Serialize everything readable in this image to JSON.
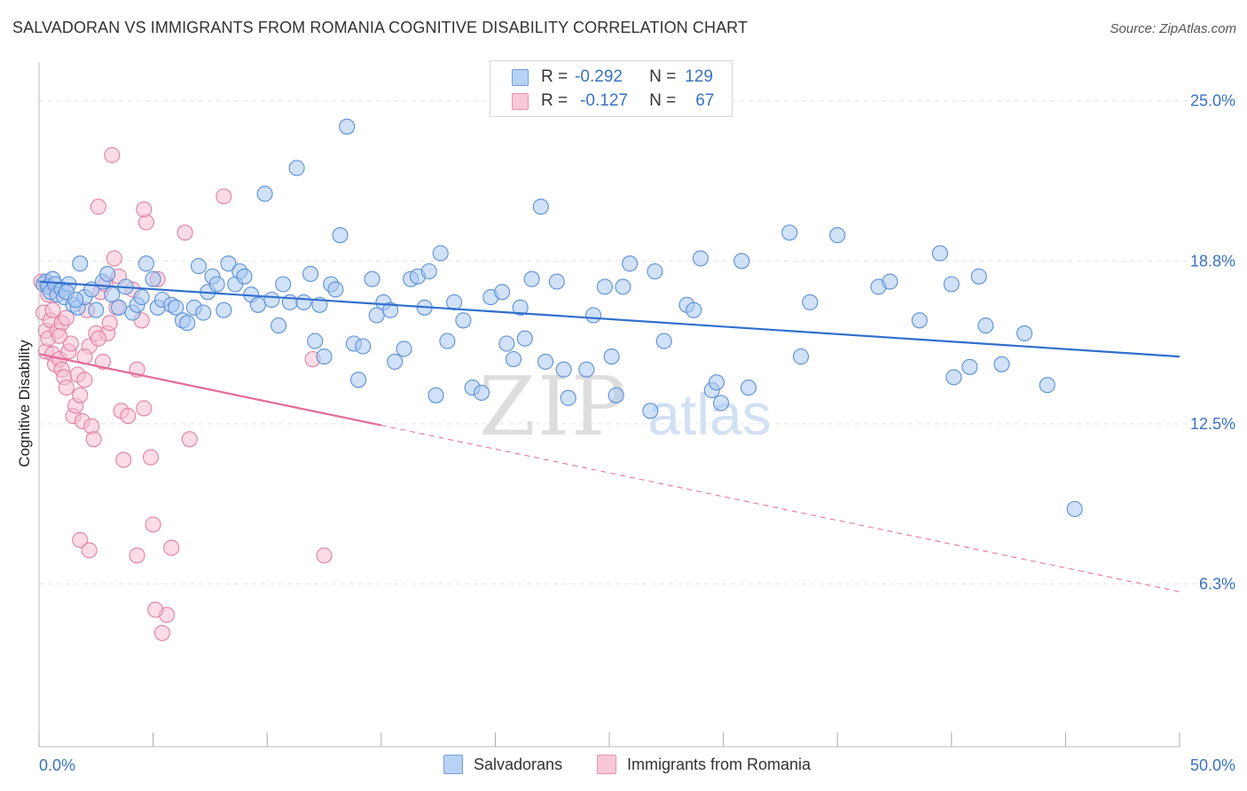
{
  "title": "SALVADORAN VS IMMIGRANTS FROM ROMANIA COGNITIVE DISABILITY CORRELATION CHART",
  "source": "Source: ZipAtlas.com",
  "legend": {
    "rows": [
      {
        "r_label": "R =",
        "r_value": "-0.292",
        "n_label": "N =",
        "n_value": "129"
      },
      {
        "r_label": "R =",
        "r_value": "-0.127",
        "n_label": "N =",
        "n_value": "67"
      }
    ]
  },
  "bottom_legend": [
    "Salvadorans",
    "Immigrants from Romania"
  ],
  "colors": {
    "blue_fill": "#a9c8f2",
    "blue_stroke": "#5b8fd6",
    "blue_line": "#2f6fcc",
    "pink_fill": "#f7bfd2",
    "pink_stroke": "#e27fa3",
    "pink_line": "#e36a97",
    "tick_label": "#3b72c4",
    "grid": "#e3e3e3"
  },
  "chart_data": {
    "type": "scatter",
    "title": "SALVADORAN VS IMMIGRANTS FROM ROMANIA COGNITIVE DISABILITY CORRELATION CHART",
    "xlabel": "",
    "ylabel": "Cognitive Disability",
    "xlim": [
      0,
      50
    ],
    "ylim": [
      0,
      26.5
    ],
    "x_tick_labels": [
      "0.0%",
      "50.0%"
    ],
    "y_ticks": [
      6.3,
      12.5,
      18.8,
      25.0
    ],
    "y_tick_labels": [
      "6.3%",
      "12.5%",
      "18.8%",
      "25.0%"
    ],
    "grid": "horizontal dashed",
    "watermark": {
      "zip": "ZIP",
      "atlas": "atlas"
    },
    "series": [
      {
        "name": "Salvadorans",
        "color": "#a9c8f2",
        "trend": {
          "x": [
            0,
            50
          ],
          "y": [
            18.0,
            15.1
          ],
          "dashed_from": null
        },
        "points": [
          [
            0.2,
            17.9
          ],
          [
            0.3,
            18.0
          ],
          [
            0.4,
            17.8
          ],
          [
            0.5,
            17.6
          ],
          [
            0.6,
            18.1
          ],
          [
            0.7,
            17.9
          ],
          [
            0.8,
            17.5
          ],
          [
            1.0,
            17.7
          ],
          [
            1.1,
            17.4
          ],
          [
            1.3,
            17.9
          ],
          [
            1.5,
            17.1
          ],
          [
            1.7,
            17.0
          ],
          [
            1.8,
            18.7
          ],
          [
            2.0,
            17.4
          ],
          [
            2.3,
            17.7
          ],
          [
            2.5,
            16.9
          ],
          [
            2.8,
            18.0
          ],
          [
            3.0,
            18.3
          ],
          [
            3.2,
            17.5
          ],
          [
            3.5,
            17.0
          ],
          [
            3.8,
            17.8
          ],
          [
            4.1,
            16.8
          ],
          [
            4.3,
            17.1
          ],
          [
            4.5,
            17.4
          ],
          [
            4.7,
            18.7
          ],
          [
            5.0,
            18.1
          ],
          [
            5.2,
            17.0
          ],
          [
            5.4,
            17.3
          ],
          [
            5.8,
            17.1
          ],
          [
            6.0,
            17.0
          ],
          [
            6.3,
            16.5
          ],
          [
            6.5,
            16.4
          ],
          [
            6.8,
            17.0
          ],
          [
            7.0,
            18.6
          ],
          [
            7.2,
            16.8
          ],
          [
            7.4,
            17.6
          ],
          [
            7.6,
            18.2
          ],
          [
            7.8,
            17.9
          ],
          [
            8.1,
            16.9
          ],
          [
            8.3,
            18.7
          ],
          [
            8.6,
            17.9
          ],
          [
            8.8,
            18.4
          ],
          [
            9.0,
            18.2
          ],
          [
            9.3,
            17.5
          ],
          [
            9.6,
            17.1
          ],
          [
            9.9,
            21.4
          ],
          [
            10.2,
            17.3
          ],
          [
            10.5,
            16.3
          ],
          [
            10.7,
            17.9
          ],
          [
            11.0,
            17.2
          ],
          [
            11.3,
            22.4
          ],
          [
            11.6,
            17.2
          ],
          [
            11.9,
            18.3
          ],
          [
            12.1,
            15.7
          ],
          [
            12.3,
            17.1
          ],
          [
            12.5,
            15.1
          ],
          [
            12.8,
            17.9
          ],
          [
            13.0,
            17.7
          ],
          [
            13.2,
            19.8
          ],
          [
            13.5,
            24.0
          ],
          [
            13.8,
            15.6
          ],
          [
            14.0,
            14.2
          ],
          [
            14.2,
            15.5
          ],
          [
            14.6,
            18.1
          ],
          [
            14.8,
            16.7
          ],
          [
            15.1,
            17.2
          ],
          [
            15.4,
            16.9
          ],
          [
            15.6,
            14.9
          ],
          [
            16.0,
            15.4
          ],
          [
            16.3,
            18.1
          ],
          [
            16.6,
            18.2
          ],
          [
            16.9,
            17.0
          ],
          [
            17.1,
            18.4
          ],
          [
            17.4,
            13.6
          ],
          [
            17.6,
            19.1
          ],
          [
            17.9,
            15.7
          ],
          [
            18.2,
            17.2
          ],
          [
            18.6,
            16.5
          ],
          [
            19.0,
            13.9
          ],
          [
            19.4,
            13.7
          ],
          [
            19.8,
            17.4
          ],
          [
            20.3,
            17.6
          ],
          [
            20.5,
            15.6
          ],
          [
            20.8,
            15.0
          ],
          [
            21.1,
            17.0
          ],
          [
            21.3,
            15.8
          ],
          [
            21.6,
            18.1
          ],
          [
            22.0,
            20.9
          ],
          [
            22.2,
            14.9
          ],
          [
            22.7,
            18.0
          ],
          [
            23.0,
            14.6
          ],
          [
            23.2,
            13.5
          ],
          [
            24.0,
            14.6
          ],
          [
            24.3,
            16.7
          ],
          [
            24.8,
            17.8
          ],
          [
            25.1,
            15.1
          ],
          [
            25.3,
            13.6
          ],
          [
            25.6,
            17.8
          ],
          [
            25.9,
            18.7
          ],
          [
            26.8,
            13.0
          ],
          [
            27.0,
            18.4
          ],
          [
            27.4,
            15.7
          ],
          [
            28.4,
            17.1
          ],
          [
            28.7,
            16.9
          ],
          [
            29.0,
            18.9
          ],
          [
            29.5,
            13.8
          ],
          [
            29.7,
            14.1
          ],
          [
            29.9,
            13.3
          ],
          [
            30.8,
            18.8
          ],
          [
            31.1,
            13.9
          ],
          [
            32.9,
            19.9
          ],
          [
            33.4,
            15.1
          ],
          [
            33.8,
            17.2
          ],
          [
            35.0,
            19.8
          ],
          [
            36.8,
            17.8
          ],
          [
            37.3,
            18.0
          ],
          [
            38.6,
            16.5
          ],
          [
            39.5,
            19.1
          ],
          [
            40.0,
            17.9
          ],
          [
            40.1,
            14.3
          ],
          [
            40.8,
            14.7
          ],
          [
            41.2,
            18.2
          ],
          [
            41.5,
            16.3
          ],
          [
            42.2,
            14.8
          ],
          [
            43.2,
            16.0
          ],
          [
            44.2,
            14.0
          ],
          [
            45.4,
            9.2
          ],
          [
            1.2,
            17.6
          ],
          [
            1.6,
            17.3
          ]
        ]
      },
      {
        "name": "Immigrants from Romania",
        "color": "#f7bfd2",
        "trend": {
          "x": [
            0,
            50
          ],
          "y": [
            15.2,
            6.0
          ],
          "solid_until_x": 15
        },
        "points": [
          [
            0.1,
            18.0
          ],
          [
            0.2,
            16.8
          ],
          [
            0.3,
            16.1
          ],
          [
            0.3,
            15.3
          ],
          [
            0.4,
            15.8
          ],
          [
            0.5,
            16.5
          ],
          [
            0.6,
            15.2
          ],
          [
            0.7,
            14.8
          ],
          [
            0.8,
            16.1
          ],
          [
            0.9,
            15.0
          ],
          [
            1.0,
            14.6
          ],
          [
            1.0,
            16.4
          ],
          [
            1.1,
            14.3
          ],
          [
            1.2,
            13.9
          ],
          [
            1.3,
            15.3
          ],
          [
            1.4,
            15.6
          ],
          [
            1.5,
            12.8
          ],
          [
            1.6,
            13.2
          ],
          [
            1.7,
            14.4
          ],
          [
            1.8,
            13.6
          ],
          [
            1.9,
            12.6
          ],
          [
            2.0,
            14.2
          ],
          [
            2.1,
            16.9
          ],
          [
            2.2,
            15.5
          ],
          [
            2.3,
            12.4
          ],
          [
            2.4,
            11.9
          ],
          [
            2.5,
            16.0
          ],
          [
            2.6,
            20.9
          ],
          [
            2.7,
            17.6
          ],
          [
            2.8,
            14.9
          ],
          [
            2.9,
            17.9
          ],
          [
            3.0,
            16.0
          ],
          [
            3.1,
            16.4
          ],
          [
            3.2,
            22.9
          ],
          [
            3.3,
            18.9
          ],
          [
            3.4,
            17.0
          ],
          [
            3.6,
            13.0
          ],
          [
            3.7,
            11.1
          ],
          [
            3.9,
            12.8
          ],
          [
            4.1,
            17.7
          ],
          [
            4.3,
            14.6
          ],
          [
            4.5,
            16.5
          ],
          [
            4.6,
            13.1
          ],
          [
            4.7,
            20.3
          ],
          [
            4.9,
            11.2
          ],
          [
            5.0,
            8.6
          ],
          [
            5.2,
            18.1
          ],
          [
            5.4,
            4.4
          ],
          [
            5.6,
            5.1
          ],
          [
            5.8,
            7.7
          ],
          [
            6.4,
            19.9
          ],
          [
            6.6,
            11.9
          ],
          [
            8.1,
            21.3
          ],
          [
            12.0,
            15.0
          ],
          [
            12.5,
            7.4
          ],
          [
            1.8,
            8.0
          ],
          [
            2.2,
            7.6
          ],
          [
            4.3,
            7.4
          ],
          [
            5.1,
            5.3
          ],
          [
            0.4,
            17.5
          ],
          [
            0.6,
            16.9
          ],
          [
            0.9,
            15.9
          ],
          [
            1.2,
            16.6
          ],
          [
            2.0,
            15.1
          ],
          [
            2.6,
            15.8
          ],
          [
            3.5,
            18.2
          ],
          [
            4.6,
            20.8
          ]
        ]
      }
    ]
  }
}
